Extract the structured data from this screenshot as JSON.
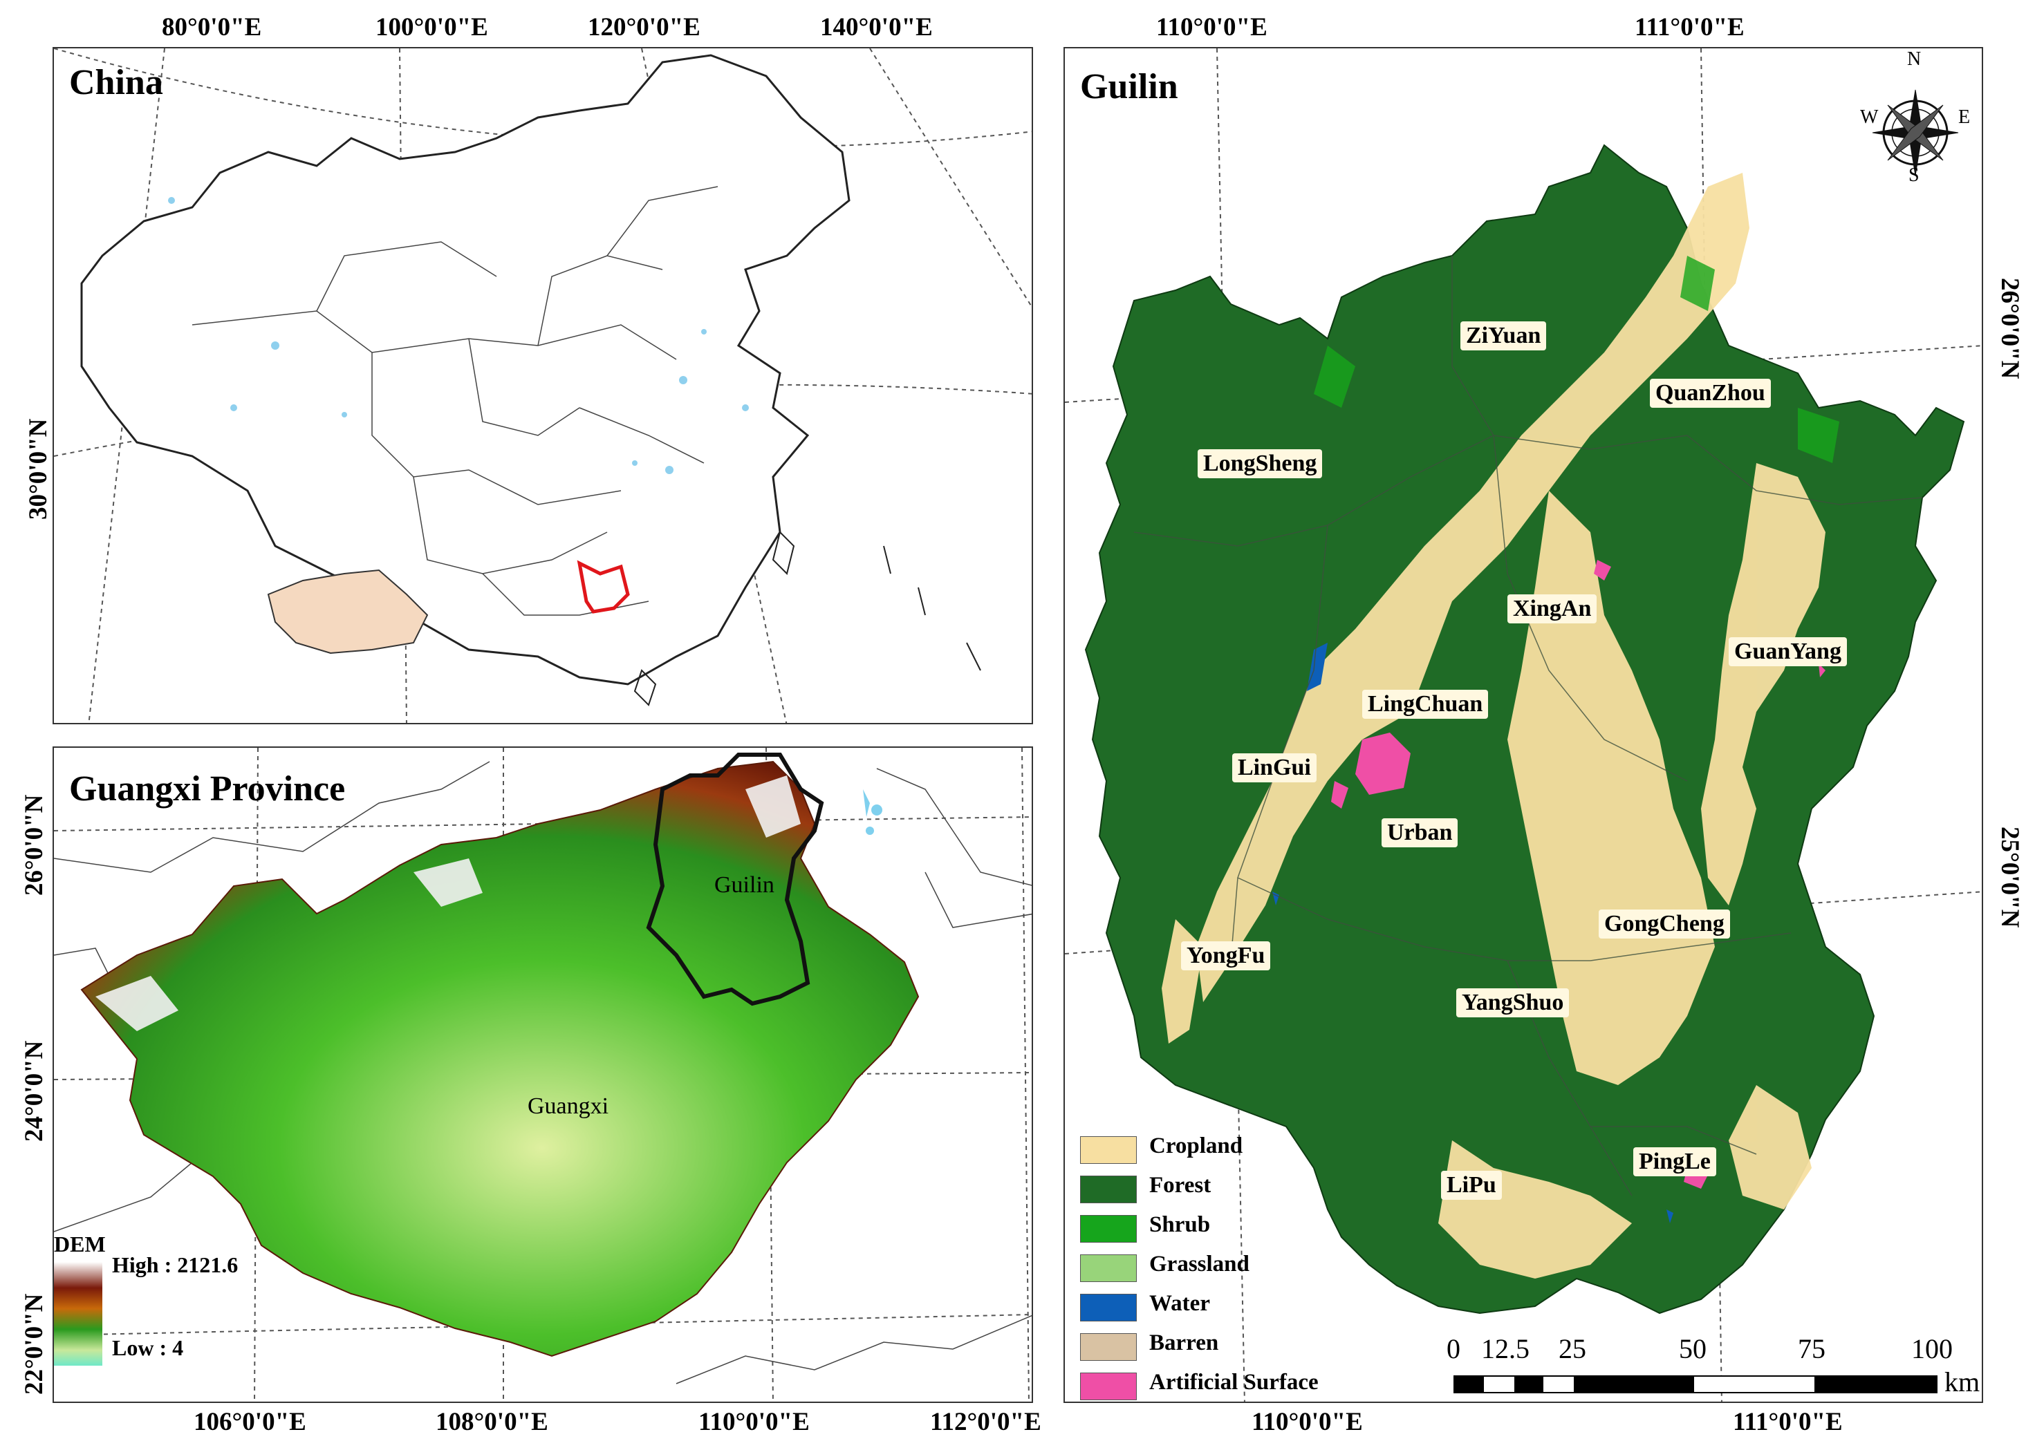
{
  "top_axis": {
    "left_ticks": [
      "80°0'0\"E",
      "100°0'0\"E",
      "120°0'0\"E",
      "140°0'0\"E"
    ],
    "right_ticks": [
      "110°0'0\"E",
      "111°0'0\"E"
    ]
  },
  "bottom_axis": {
    "left_ticks": [
      "106°0'0\"E",
      "108°0'0\"E",
      "110°0'0\"E",
      "112°0'0\"E"
    ],
    "right_ticks": [
      "110°0'0\"E",
      "111°0'0\"E"
    ]
  },
  "china_panel": {
    "title": "China",
    "left_ticks": [
      "30°0'0\"N"
    ]
  },
  "guangxi_panel": {
    "title": "Guangxi Province",
    "left_ticks": [
      "26°0'0\"N",
      "24°0'0\"N",
      "22°0'0\"N"
    ],
    "labels": {
      "guilin": "Guilin",
      "guangxi": "Guangxi"
    },
    "dem_legend": {
      "title": "DEM",
      "high": "High : 2121.6",
      "low": "Low : 4"
    }
  },
  "guilin_panel": {
    "title": "Guilin",
    "right_ticks": [
      "26°0'0\"N",
      "25°0'0\"N"
    ],
    "counties": [
      "ZiYuan",
      "QuanZhou",
      "LongSheng",
      "XingAn",
      "GuanYang",
      "LingChuan",
      "LinGui",
      "Urban",
      "YongFu",
      "GongCheng",
      "YangShuo",
      "LiPu",
      "PingLe"
    ],
    "compass": {
      "n": "N",
      "s": "S",
      "e": "E",
      "w": "W"
    },
    "legend": [
      {
        "label": "Cropland",
        "color": "#f7dfa1"
      },
      {
        "label": "Forest",
        "color": "#1f6b26"
      },
      {
        "label": "Shrub",
        "color": "#16a51c"
      },
      {
        "label": "Grassland",
        "color": "#98d47a"
      },
      {
        "label": "Water",
        "color": "#0d5fb8"
      },
      {
        "label": "Barren",
        "color": "#d9c2a3"
      },
      {
        "label": "Artificial Surface",
        "color": "#ef4fa6"
      }
    ],
    "scale_bar": {
      "ticks": [
        "0",
        "12.5",
        "25",
        "50",
        "75",
        "100"
      ],
      "unit": "km"
    }
  }
}
